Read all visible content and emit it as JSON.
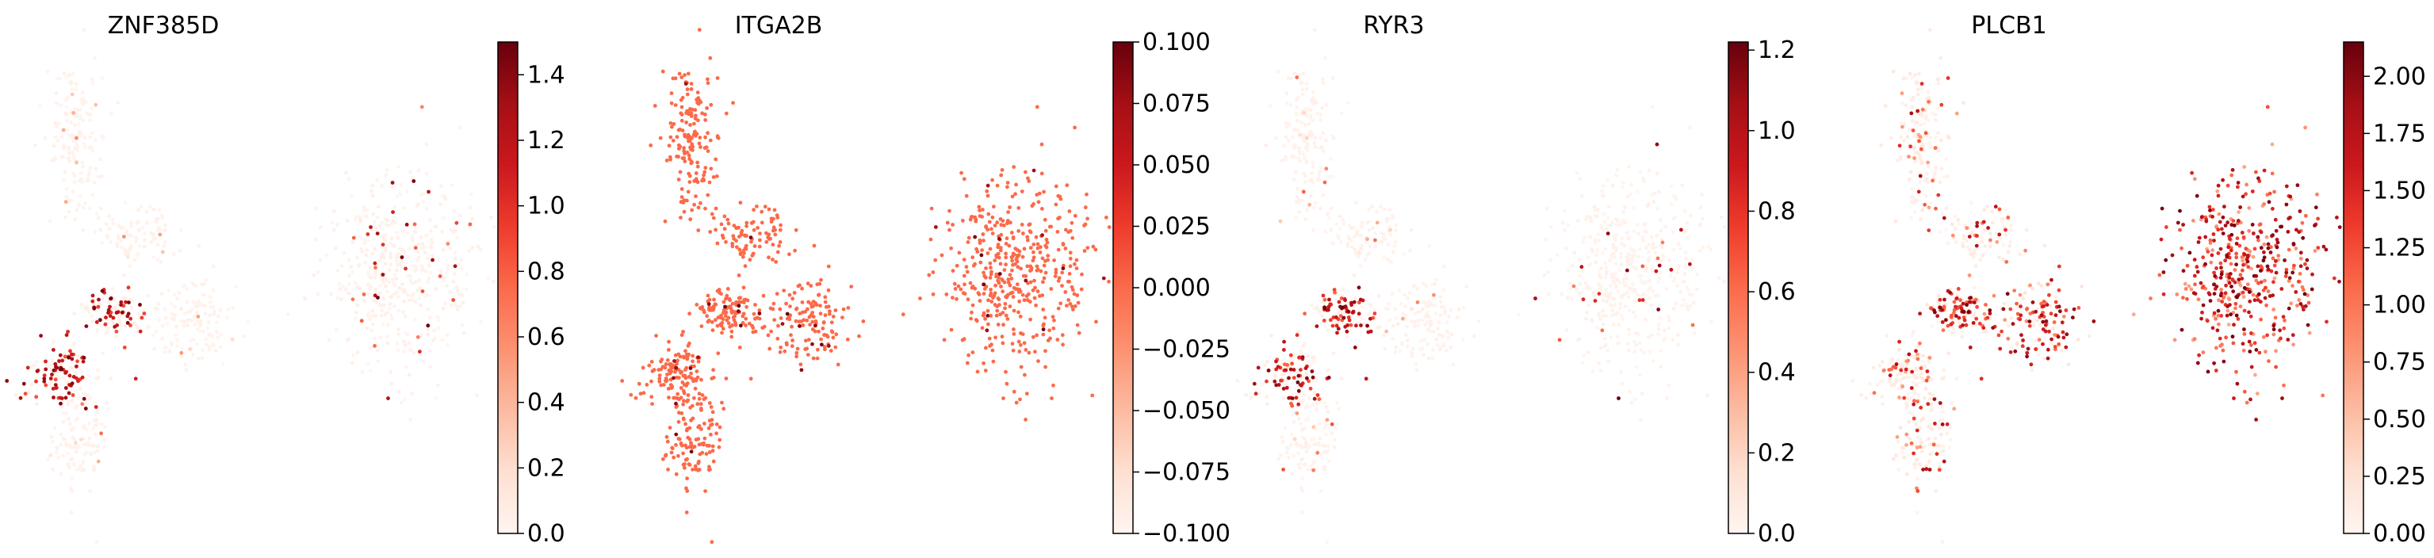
{
  "chart_data": [
    {
      "type": "scatter",
      "title": "ZNF385D",
      "colormap": "Reds",
      "colorbar": {
        "range": [
          0.0,
          1.5
        ],
        "ticks": [
          0.0,
          0.2,
          0.4,
          0.6,
          0.8,
          1.0,
          1.2,
          1.4
        ],
        "tick_labels": [
          "0.0",
          "0.2",
          "0.4",
          "0.6",
          "0.8",
          "1.0",
          "1.2",
          "1.4"
        ]
      },
      "expression_pattern": "sparse; highest in lower-left arm, scattered high cells in right island",
      "baseline_level": 0.0,
      "xlabel": "",
      "ylabel": "",
      "grid": false,
      "frame": false,
      "legend": "colorbar-right"
    },
    {
      "type": "scatter",
      "title": "ITGA2B",
      "colormap": "Reds",
      "colorbar": {
        "range": [
          -0.1,
          0.1
        ],
        "ticks": [
          -0.1,
          -0.075,
          -0.05,
          -0.025,
          0.0,
          0.025,
          0.05,
          0.075,
          0.1
        ],
        "tick_labels": [
          "−0.100",
          "−0.075",
          "−0.050",
          "−0.025",
          "0.000",
          "0.025",
          "0.050",
          "0.075",
          "0.100"
        ]
      },
      "expression_pattern": "uniform mid-level across all cells, few darker cells",
      "baseline_level": 0.0,
      "xlabel": "",
      "ylabel": "",
      "grid": false,
      "frame": false,
      "legend": "colorbar-right"
    },
    {
      "type": "scatter",
      "title": "RYR3",
      "colormap": "Reds",
      "colorbar": {
        "range": [
          0.0,
          1.22
        ],
        "ticks": [
          0.0,
          0.2,
          0.4,
          0.6,
          0.8,
          1.0,
          1.2
        ],
        "tick_labels": [
          "0.0",
          "0.2",
          "0.4",
          "0.6",
          "0.8",
          "1.0",
          "1.2"
        ]
      },
      "expression_pattern": "high in lower-left arm, sparse elsewhere",
      "baseline_level": 0.0,
      "xlabel": "",
      "ylabel": "",
      "grid": false,
      "frame": false,
      "legend": "colorbar-right"
    },
    {
      "type": "scatter",
      "title": "PLCB1",
      "colormap": "Reds",
      "colorbar": {
        "range": [
          0.0,
          2.15
        ],
        "ticks": [
          0.0,
          0.25,
          0.5,
          0.75,
          1.0,
          1.25,
          1.5,
          1.75,
          2.0
        ],
        "tick_labels": [
          "0.00",
          "0.25",
          "0.50",
          "0.75",
          "1.00",
          "1.25",
          "1.50",
          "1.75",
          "2.00"
        ]
      },
      "expression_pattern": "broadly high in right island and central arm",
      "baseline_level": 0.0,
      "xlabel": "",
      "ylabel": "",
      "grid": false,
      "frame": false,
      "legend": "colorbar-right"
    }
  ]
}
